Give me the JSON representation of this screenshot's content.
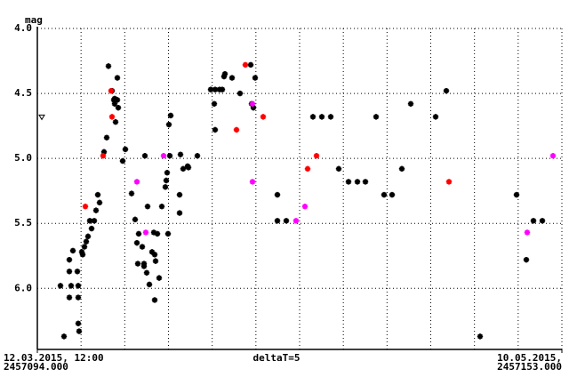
{
  "chart_data": {
    "type": "scatter",
    "ylabel": "mag",
    "annotation": "deltaT=5",
    "xlim": [
      2457094.0,
      2457153.0
    ],
    "xticks": [
      {
        "value": 2457094.0,
        "label": "12.03.2015, 12:00",
        "sublabel": "2457094.000"
      },
      {
        "value": 2457153.0,
        "label": "10.05.2015,",
        "sublabel": "2457153.000"
      }
    ],
    "xgrid": [
      2457098.917,
      2457103.833,
      2457108.75,
      2457113.667,
      2457118.583,
      2457123.5,
      2457128.417,
      2457133.333,
      2457138.25,
      2457143.167,
      2457148.083,
      2457153.0
    ],
    "ylim": [
      4.0,
      6.47
    ],
    "y_inverted": true,
    "yticks": [
      {
        "value": 4,
        "label": "4.0"
      },
      {
        "value": 4.5,
        "label": "4.5"
      },
      {
        "value": 5,
        "label": "5.0"
      },
      {
        "value": 5.5,
        "label": "5.5"
      },
      {
        "value": 6,
        "label": "6.0"
      }
    ],
    "grid": true,
    "series": [
      {
        "color": "#000000",
        "marker": "asterisk",
        "x": [
          2457097.0,
          2457096.6,
          2457097.6,
          2457097.6,
          2457097.8,
          2457097.6,
          2457098.0,
          2457098.5,
          2457098.6,
          2457098.6,
          2457098.6,
          2457098.7,
          2457099.0,
          2457099.1,
          2457099.3,
          2457099.5,
          2457099.7,
          2457099.9,
          2457100.1,
          2457100.4,
          2457100.6,
          2457101.0,
          2457100.8,
          2457101.5,
          2457101.8,
          2457102.0,
          2457102.4,
          2457102.6,
          2457102.7,
          2457102.7,
          2457102.8,
          2457103.0,
          2457103.0,
          2457103.1,
          2457103.6,
          2457103.9,
          2457104.6,
          2457105.0,
          2457105.2,
          2457105.3,
          2457105.4,
          2457105.8,
          2457106.0,
          2457106.0,
          2457106.1,
          2457106.3,
          2457106.4,
          2457106.6,
          2457106.9,
          2457107.1,
          2457107.2,
          2457107.2,
          2457107.3,
          2457107.5,
          2457107.7,
          2457108.0,
          2457108.4,
          2457108.5,
          2457108.6,
          2457108.7,
          2457108.8,
          2457109.0,
          2457108.9,
          2457110.0,
          2457110.0,
          2457110.1,
          2457110.4,
          2457110.9,
          2457111.0,
          2457112.0,
          2457113.5,
          2457113.9,
          2457114.0,
          2457114.0,
          2457114.5,
          2457114.8,
          2457115.0,
          2457115.1,
          2457115.9,
          2457116.8,
          2457118.0,
          2457118.1,
          2457118.3,
          2457118.5,
          2457121.0,
          2457121.0,
          2457122.0,
          2457125.0,
          2457126.0,
          2457127.0,
          2457127.9,
          2457129.0,
          2457130.0,
          2457130.9,
          2457132.1,
          2457133.0,
          2457133.9,
          2457135.0,
          2457136.0,
          2457138.8,
          2457140.0,
          2457143.8,
          2457147.9,
          2457149.0,
          2457149.8,
          2457150.8
        ],
        "y": [
          6.37,
          5.98,
          5.78,
          5.87,
          5.98,
          6.07,
          5.71,
          5.87,
          5.98,
          6.07,
          6.27,
          6.33,
          5.72,
          5.74,
          5.68,
          5.64,
          5.6,
          5.48,
          5.54,
          5.48,
          5.4,
          5.34,
          5.28,
          4.95,
          4.84,
          4.29,
          4.48,
          4.55,
          4.58,
          4.54,
          4.72,
          4.38,
          4.55,
          4.61,
          5.02,
          4.93,
          5.27,
          5.47,
          5.65,
          5.81,
          5.58,
          5.68,
          5.81,
          5.83,
          4.98,
          5.88,
          5.37,
          5.97,
          5.72,
          5.57,
          5.74,
          6.09,
          5.79,
          5.58,
          5.92,
          5.37,
          5.22,
          5.17,
          5.11,
          5.58,
          4.74,
          4.67,
          4.98,
          5.42,
          5.28,
          4.97,
          5.08,
          5.06,
          5.07,
          4.98,
          4.47,
          4.58,
          4.47,
          4.78,
          4.47,
          4.47,
          4.37,
          4.35,
          4.38,
          4.5,
          4.28,
          4.58,
          4.61,
          4.38,
          5.28,
          5.48,
          5.48,
          4.68,
          4.68,
          4.68,
          5.08,
          5.18,
          5.18,
          5.18,
          4.68,
          5.28,
          5.28,
          5.08,
          4.58,
          4.68,
          4.48,
          6.37,
          5.28,
          5.78,
          5.48,
          5.48
        ]
      },
      {
        "color": "#ff0000",
        "marker": "asterisk",
        "x": [
          2457099.4,
          2457101.4,
          2457102.3,
          2457102.4,
          2457116.4,
          2457117.4,
          2457119.4,
          2457124.4,
          2457125.4,
          2457140.3
        ],
        "y": [
          5.37,
          4.98,
          4.48,
          4.68,
          4.78,
          4.28,
          4.68,
          5.08,
          4.98,
          5.18
        ]
      },
      {
        "color": "#ff00ff",
        "marker": "asterisk",
        "x": [
          2457105.2,
          2457106.2,
          2457108.2,
          2457118.2,
          2457118.2,
          2457123.1,
          2457124.1,
          2457149.1,
          2457152.0
        ],
        "y": [
          5.18,
          5.57,
          4.98,
          4.58,
          5.18,
          5.48,
          5.37,
          5.57,
          4.98
        ]
      },
      {
        "color": "#000000",
        "marker": "triangle",
        "x": [
          2457094.5
        ],
        "y": [
          4.68
        ]
      }
    ]
  }
}
